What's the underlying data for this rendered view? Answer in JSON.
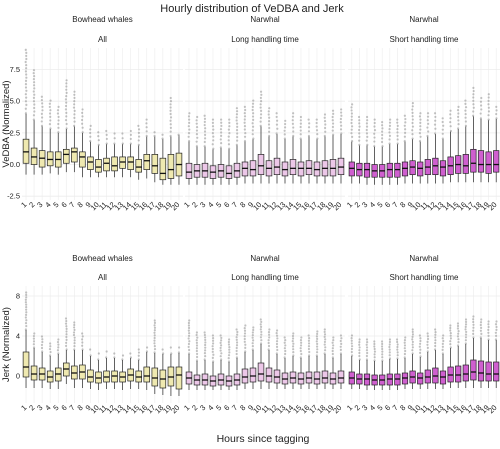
{
  "title": "Hourly distribution of VeDBA and Jerk",
  "xlabel": "Hours since tagging",
  "colors": {
    "bowhead": "#efe9b0",
    "narwhal_long": "#ecc7e8",
    "narwhal_short": "#cf5fcf",
    "outlier": "#555555",
    "grid": "#ececec"
  },
  "chart_data": [
    {
      "type": "box",
      "ylabel": "VeDBA (Normalized)",
      "ylim": [
        -2.8,
        9.2
      ],
      "yticks": [
        {
          "v": 7.5,
          "label": "7.5"
        },
        {
          "v": 5.0,
          "label": "5.0"
        },
        {
          "v": 2.5,
          "label": "2.5"
        },
        {
          "v": 0.0,
          "label": "0.0"
        },
        {
          "v": -2.5,
          "label": "-2.5"
        }
      ],
      "panels": [
        {
          "strip1": "Bowhead whales",
          "strip2": "All",
          "series": "bowhead",
          "n": 20,
          "median": [
            1.0,
            0.6,
            0.5,
            0.4,
            0.4,
            0.8,
            1.0,
            0.6,
            0.2,
            -0.2,
            0.1,
            -0.1,
            0.2,
            0.2,
            -0.2,
            0.3,
            -0.1,
            -0.7,
            -0.4,
            0.0
          ],
          "q1": [
            0.1,
            0.0,
            -0.2,
            -0.1,
            -0.2,
            0.1,
            0.2,
            -0.2,
            -0.4,
            -0.6,
            -0.5,
            -0.5,
            -0.3,
            -0.4,
            -0.6,
            -0.4,
            -0.7,
            -1.2,
            -1.1,
            -0.9
          ],
          "q3": [
            2.0,
            1.3,
            1.1,
            1.0,
            1.0,
            1.2,
            1.3,
            1.0,
            0.6,
            0.4,
            0.5,
            0.6,
            0.6,
            0.6,
            0.4,
            0.8,
            0.8,
            0.5,
            0.8,
            0.9
          ],
          "wlo": [
            -0.8,
            -0.8,
            -0.8,
            -0.7,
            -0.8,
            -0.6,
            -0.6,
            -1.0,
            -1.0,
            -1.0,
            -1.0,
            -1.0,
            -1.0,
            -1.0,
            -1.2,
            -1.1,
            -1.4,
            -1.6,
            -1.6,
            -1.6
          ],
          "whi": [
            4.0,
            3.5,
            3.0,
            2.8,
            2.5,
            2.8,
            3.0,
            2.5,
            1.8,
            1.5,
            1.6,
            1.6,
            1.6,
            1.6,
            1.5,
            2.2,
            2.2,
            2.0,
            2.2,
            2.2
          ],
          "omax": [
            9.0,
            7.4,
            5.3,
            5.0,
            4.5,
            6.6,
            5.7,
            4.3,
            3.0,
            2.5,
            2.6,
            2.4,
            2.4,
            2.6,
            3.0,
            3.5,
            2.5,
            2.3,
            5.2,
            2.3
          ]
        },
        {
          "strip1": "Narwhal",
          "strip2": "Long handling time",
          "series": "narwhal_long",
          "n": 20,
          "median": [
            -0.6,
            -0.5,
            -0.5,
            -0.6,
            -0.5,
            -0.7,
            -0.5,
            -0.3,
            -0.4,
            -0.1,
            -0.3,
            -0.2,
            -0.4,
            -0.3,
            -0.3,
            -0.3,
            -0.4,
            -0.3,
            -0.3,
            -0.2
          ],
          "q1": [
            -1.1,
            -1.0,
            -1.0,
            -1.1,
            -1.0,
            -1.1,
            -1.0,
            -0.9,
            -0.9,
            -0.8,
            -0.9,
            -0.8,
            -0.9,
            -0.8,
            -0.9,
            -0.8,
            -0.9,
            -0.9,
            -0.9,
            -0.8
          ],
          "q3": [
            0.1,
            0.0,
            0.1,
            -0.1,
            0.0,
            -0.1,
            0.1,
            0.2,
            0.3,
            0.8,
            0.3,
            0.5,
            0.2,
            0.4,
            0.2,
            0.3,
            0.2,
            0.3,
            0.4,
            0.5
          ],
          "wlo": [
            -1.6,
            -1.6,
            -1.6,
            -1.6,
            -1.6,
            -1.6,
            -1.6,
            -1.5,
            -1.5,
            -1.5,
            -1.5,
            -1.5,
            -1.5,
            -1.5,
            -1.5,
            -1.5,
            -1.5,
            -1.5,
            -1.5,
            -1.5
          ],
          "whi": [
            1.8,
            1.4,
            1.4,
            1.2,
            1.3,
            1.2,
            1.5,
            1.8,
            2.0,
            3.0,
            2.2,
            2.4,
            2.0,
            2.2,
            2.0,
            2.2,
            2.0,
            2.2,
            2.3,
            2.4
          ],
          "omax": [
            4.0,
            3.7,
            3.8,
            3.5,
            3.5,
            3.5,
            4.4,
            4.5,
            5.0,
            5.7,
            4.4,
            4.0,
            3.4,
            4.0,
            3.7,
            3.5,
            3.5,
            3.9,
            4.2,
            4.3
          ]
        },
        {
          "strip1": "Narwhal",
          "strip2": "Short handling time",
          "series": "narwhal_short",
          "n": 20,
          "median": [
            -0.3,
            -0.4,
            -0.4,
            -0.5,
            -0.5,
            -0.4,
            -0.4,
            -0.3,
            -0.2,
            -0.3,
            -0.2,
            -0.1,
            -0.2,
            -0.1,
            0.0,
            -0.1,
            0.1,
            0.0,
            0.0,
            0.0
          ],
          "q1": [
            -0.9,
            -0.9,
            -1.0,
            -1.0,
            -1.0,
            -1.0,
            -1.0,
            -0.9,
            -0.8,
            -0.9,
            -0.8,
            -0.8,
            -0.9,
            -0.8,
            -0.7,
            -0.7,
            -0.6,
            -0.6,
            -0.7,
            -0.6
          ],
          "q3": [
            0.2,
            0.1,
            0.1,
            0.0,
            0.0,
            0.1,
            0.1,
            0.2,
            0.3,
            0.2,
            0.4,
            0.5,
            0.3,
            0.6,
            0.7,
            0.8,
            1.2,
            1.1,
            1.0,
            1.1
          ],
          "wlo": [
            -1.5,
            -1.5,
            -1.6,
            -1.6,
            -1.6,
            -1.6,
            -1.6,
            -1.5,
            -1.5,
            -1.5,
            -1.5,
            -1.5,
            -1.5,
            -1.4,
            -1.4,
            -1.4,
            -1.4,
            -1.4,
            -1.4,
            -1.4
          ],
          "whi": [
            1.8,
            1.5,
            1.5,
            1.4,
            1.4,
            1.6,
            1.6,
            1.8,
            2.0,
            1.8,
            2.2,
            2.4,
            2.0,
            2.6,
            2.8,
            3.0,
            3.8,
            3.6,
            3.5,
            3.6
          ],
          "omax": [
            4.7,
            3.7,
            3.7,
            3.5,
            3.3,
            3.5,
            3.5,
            3.8,
            4.8,
            4.0,
            4.0,
            4.0,
            3.6,
            4.2,
            4.5,
            5.0,
            6.0,
            5.2,
            5.5,
            4.5
          ]
        }
      ],
      "xticks": [
        "1",
        "2",
        "3",
        "4",
        "5",
        "6",
        "7",
        "8",
        "9",
        "10",
        "11",
        "12",
        "13",
        "14",
        "15",
        "16",
        "17",
        "18",
        "19",
        "20"
      ]
    },
    {
      "type": "box",
      "ylabel": "Jerk (Normalized)",
      "ylim": [
        -2.7,
        9.0
      ],
      "yticks": [
        {
          "v": 8,
          "label": "8"
        },
        {
          "v": 4,
          "label": "4"
        },
        {
          "v": 0,
          "label": "0"
        }
      ],
      "panels": [
        {
          "strip1": "Bowhead whales",
          "strip2": "All",
          "series": "bowhead",
          "n": 20,
          "median": [
            0.9,
            0.2,
            0.2,
            -0.1,
            0.2,
            0.7,
            0.3,
            0.4,
            -0.1,
            -0.2,
            -0.1,
            0.0,
            -0.1,
            0.1,
            -0.1,
            0.0,
            -0.2,
            -0.3,
            -0.1,
            0.1
          ],
          "q1": [
            -0.1,
            -0.4,
            -0.4,
            -0.6,
            -0.5,
            0.0,
            -0.3,
            -0.3,
            -0.6,
            -0.7,
            -0.6,
            -0.6,
            -0.6,
            -0.5,
            -0.6,
            -0.6,
            -1.0,
            -1.2,
            -1.0,
            -1.3
          ],
          "q3": [
            2.4,
            1.0,
            0.8,
            0.5,
            0.8,
            1.3,
            1.0,
            1.1,
            0.6,
            0.4,
            0.5,
            0.5,
            0.4,
            0.7,
            0.5,
            0.9,
            0.8,
            0.6,
            0.9,
            0.9
          ],
          "wlo": [
            -1.2,
            -1.2,
            -1.2,
            -1.3,
            -1.3,
            -0.8,
            -1.2,
            -1.2,
            -1.3,
            -1.4,
            -1.3,
            -1.3,
            -1.4,
            -1.3,
            -1.3,
            -1.4,
            -1.8,
            -1.9,
            -2.0,
            -2.0
          ],
          "whi": [
            4.6,
            2.8,
            2.4,
            2.0,
            2.2,
            2.6,
            2.6,
            2.6,
            2.0,
            1.6,
            1.8,
            1.8,
            1.6,
            1.8,
            1.6,
            2.4,
            2.3,
            2.2,
            2.2,
            2.3
          ],
          "omax": [
            8.3,
            4.2,
            3.9,
            3.2,
            3.6,
            5.7,
            5.3,
            4.2,
            2.6,
            2.2,
            2.4,
            2.2,
            2.0,
            2.2,
            2.6,
            2.8,
            5.5,
            2.6,
            2.8,
            2.8
          ]
        },
        {
          "strip1": "Narwhal",
          "strip2": "Long handling time",
          "series": "narwhal_long",
          "n": 20,
          "median": [
            -0.2,
            -0.4,
            -0.4,
            -0.5,
            -0.4,
            -0.5,
            -0.4,
            -0.1,
            0.0,
            0.2,
            0.0,
            -0.1,
            -0.3,
            -0.2,
            -0.3,
            -0.2,
            -0.3,
            -0.2,
            -0.3,
            -0.2
          ],
          "q1": [
            -0.8,
            -0.9,
            -0.9,
            -1.0,
            -0.9,
            -1.0,
            -0.9,
            -0.7,
            -0.6,
            -0.5,
            -0.6,
            -0.7,
            -0.8,
            -0.7,
            -0.8,
            -0.7,
            -0.8,
            -0.7,
            -0.8,
            -0.7
          ],
          "q3": [
            0.4,
            0.1,
            0.2,
            0.0,
            0.2,
            0.0,
            0.2,
            0.7,
            0.8,
            1.3,
            0.8,
            0.6,
            0.3,
            0.4,
            0.3,
            0.4,
            0.4,
            0.5,
            0.3,
            0.5
          ],
          "wlo": [
            -1.4,
            -1.4,
            -1.4,
            -1.4,
            -1.4,
            -1.4,
            -1.4,
            -1.3,
            -1.3,
            -1.3,
            -1.3,
            -1.3,
            -1.3,
            -1.3,
            -1.3,
            -1.3,
            -1.3,
            -1.3,
            -1.3,
            -1.3
          ],
          "whi": [
            2.2,
            1.5,
            1.6,
            1.4,
            1.6,
            1.4,
            1.8,
            2.4,
            2.6,
            3.2,
            2.6,
            2.2,
            1.8,
            2.0,
            1.8,
            2.0,
            2.0,
            2.2,
            1.8,
            2.2
          ],
          "omax": [
            5.5,
            4.3,
            4.3,
            4.0,
            4.0,
            3.6,
            4.6,
            5.0,
            4.8,
            5.6,
            4.6,
            4.5,
            3.8,
            4.2,
            3.8,
            4.0,
            4.4,
            4.6,
            3.8,
            4.0
          ]
        },
        {
          "strip1": "Narwhal",
          "strip2": "Short handling time",
          "series": "narwhal_short",
          "n": 20,
          "median": [
            -0.2,
            -0.3,
            -0.3,
            -0.4,
            -0.4,
            -0.3,
            -0.3,
            -0.2,
            -0.1,
            -0.2,
            -0.1,
            0.0,
            -0.1,
            0.1,
            0.1,
            0.2,
            0.4,
            0.3,
            0.2,
            0.2
          ],
          "q1": [
            -0.8,
            -0.8,
            -0.9,
            -0.9,
            -0.9,
            -0.9,
            -0.9,
            -0.8,
            -0.7,
            -0.8,
            -0.7,
            -0.7,
            -0.8,
            -0.6,
            -0.6,
            -0.5,
            -0.4,
            -0.5,
            -0.5,
            -0.5
          ],
          "q3": [
            0.4,
            0.2,
            0.2,
            0.1,
            0.1,
            0.2,
            0.2,
            0.3,
            0.5,
            0.3,
            0.6,
            0.8,
            0.5,
            0.9,
            1.0,
            1.1,
            1.6,
            1.5,
            1.4,
            1.4
          ],
          "wlo": [
            -1.3,
            -1.3,
            -1.4,
            -1.4,
            -1.4,
            -1.4,
            -1.4,
            -1.3,
            -1.3,
            -1.3,
            -1.3,
            -1.3,
            -1.3,
            -1.2,
            -1.2,
            -1.2,
            -1.2,
            -1.2,
            -1.2,
            -1.2
          ],
          "whi": [
            2.0,
            1.6,
            1.6,
            1.5,
            1.5,
            1.7,
            1.7,
            1.8,
            2.2,
            1.9,
            2.4,
            2.6,
            2.2,
            2.8,
            3.0,
            3.2,
            3.8,
            3.8,
            3.6,
            3.6
          ],
          "omax": [
            4.0,
            3.6,
            3.6,
            3.4,
            3.4,
            3.6,
            3.6,
            3.8,
            4.6,
            4.0,
            4.2,
            4.6,
            4.0,
            5.0,
            5.2,
            5.6,
            5.9,
            5.6,
            5.4,
            5.4
          ]
        }
      ],
      "xticks": [
        "1",
        "2",
        "3",
        "4",
        "5",
        "6",
        "7",
        "8",
        "9",
        "10",
        "11",
        "12",
        "13",
        "14",
        "15",
        "16",
        "17",
        "18",
        "19",
        "20"
      ]
    }
  ]
}
